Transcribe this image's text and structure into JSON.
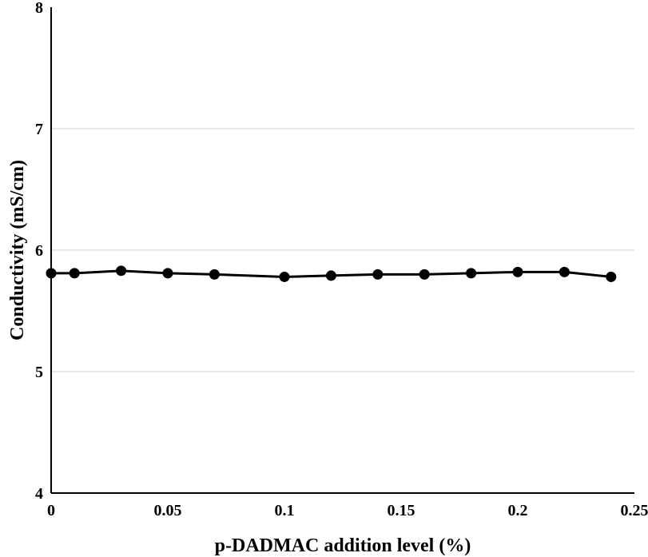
{
  "chart_data": {
    "type": "line",
    "title": "",
    "xlabel": "p-DADMAC addition level (%)",
    "ylabel": "Conductivity (mS/cm)",
    "xlim": [
      0,
      0.25
    ],
    "ylim": [
      4,
      8
    ],
    "x_ticks": [
      0,
      0.05,
      0.1,
      0.15,
      0.2,
      0.25
    ],
    "x_tick_labels": [
      "0",
      "0.05",
      "0.1",
      "0.15",
      "0.2",
      "0.25"
    ],
    "y_ticks": [
      4,
      5,
      6,
      7,
      8
    ],
    "y_tick_labels": [
      "4",
      "5",
      "6",
      "7",
      "8"
    ],
    "grid": "horizontal",
    "legend": "none",
    "series": [
      {
        "x": [
          0,
          0.01,
          0.03,
          0.05,
          0.07,
          0.1,
          0.12,
          0.14,
          0.16,
          0.18,
          0.2,
          0.22,
          0.24
        ],
        "y": [
          5.81,
          5.81,
          5.83,
          5.81,
          5.8,
          5.78,
          5.79,
          5.8,
          5.8,
          5.81,
          5.82,
          5.82,
          5.78
        ],
        "color": "#000000",
        "marker": "circle"
      }
    ],
    "colors": {
      "line": "#000000",
      "grid": "#d9d9d9",
      "axis": "#000000"
    }
  }
}
